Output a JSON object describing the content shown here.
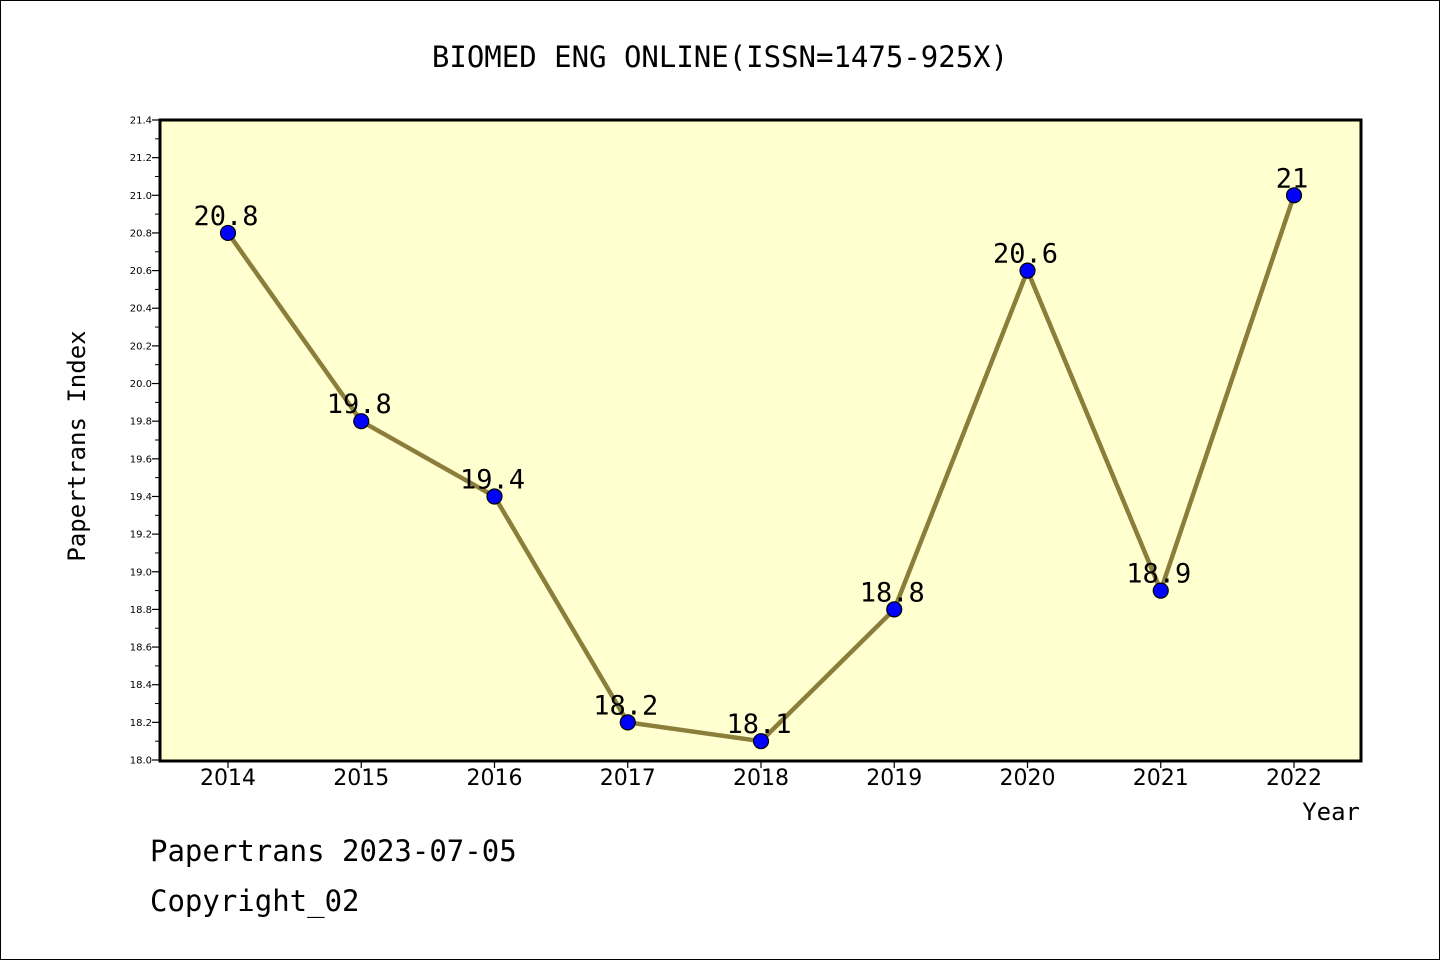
{
  "chart_data": {
    "type": "line",
    "title": "BIOMED ENG ONLINE(ISSN=1475-925X)",
    "xlabel": "Year",
    "ylabel": "Papertrans Index",
    "categories": [
      "2014",
      "2015",
      "2016",
      "2017",
      "2018",
      "2019",
      "2020",
      "2021",
      "2022"
    ],
    "series": [
      {
        "values": [
          20.8,
          19.8,
          19.4,
          18.2,
          18.1,
          18.8,
          20.6,
          18.9,
          21
        ],
        "data_labels": [
          "20.8",
          "19.8",
          "19.4",
          "18.2",
          "18.1",
          "18.8",
          "20.6",
          "18.9",
          "21"
        ]
      }
    ],
    "ylim": [
      18.0,
      21.4
    ],
    "yticks": [
      "18.0",
      "18.2",
      "18.4",
      "18.6",
      "18.8",
      "19.0",
      "19.2",
      "19.4",
      "19.6",
      "19.8",
      "20.0",
      "20.2",
      "20.4",
      "20.6",
      "20.8",
      "21.0",
      "21.2",
      "21.4"
    ],
    "grid": false,
    "legend": "none",
    "colors": {
      "plot_background": "#ffffd0",
      "line": "#8b7d3a",
      "marker": "#0000ff"
    }
  },
  "footer": {
    "line1": "Papertrans 2023-07-05",
    "line2": "Copyright_02"
  }
}
